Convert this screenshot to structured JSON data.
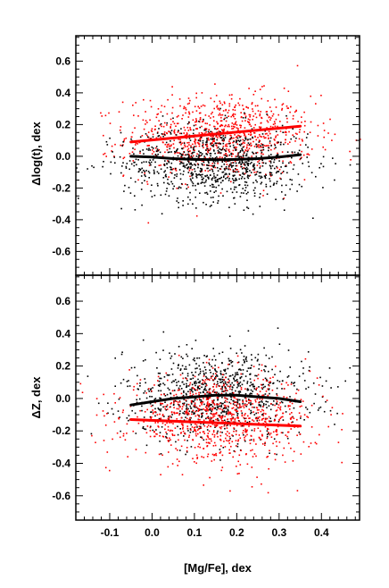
{
  "chart_data": [
    {
      "type": "scatter",
      "title": "",
      "xlabel": "",
      "ylabel": "Δlog(t), dex",
      "xlim": [
        -0.18,
        0.49
      ],
      "ylim": [
        -0.75,
        0.76
      ],
      "x_ticks": [
        "-0.1",
        "0.0",
        "0.1",
        "0.2",
        "0.3",
        "0.4"
      ],
      "y_ticks": [
        "0.6",
        "0.4",
        "0.2",
        "0.0",
        "-0.2",
        "-0.4",
        "-0.6"
      ],
      "series": [
        {
          "color": "#ff0000",
          "cloud": {
            "x_mean": 0.16,
            "x_sd": 0.11,
            "y_mean": 0.13,
            "y_sd": 0.13,
            "n": 900
          },
          "trend": {
            "x": [
              -0.05,
              0.35
            ],
            "y": [
              0.09,
              0.19
            ]
          }
        },
        {
          "color": "#000000",
          "cloud": {
            "x_mean": 0.15,
            "x_sd": 0.11,
            "y_mean": -0.04,
            "y_sd": 0.12,
            "n": 900
          },
          "trend": {
            "x": [
              -0.05,
              0.0,
              0.05,
              0.1,
              0.15,
              0.2,
              0.25,
              0.3,
              0.35
            ],
            "y": [
              0.0,
              -0.005,
              -0.015,
              -0.02,
              -0.022,
              -0.02,
              -0.015,
              -0.005,
              0.01
            ]
          }
        }
      ]
    },
    {
      "type": "scatter",
      "title": "",
      "xlabel": "[Mg/Fe], dex",
      "ylabel": "ΔZ, dex",
      "xlim": [
        -0.18,
        0.49
      ],
      "ylim": [
        -0.75,
        0.76
      ],
      "x_ticks": [
        "-0.1",
        "0.0",
        "0.1",
        "0.2",
        "0.3",
        "0.4"
      ],
      "y_ticks": [
        "0.6",
        "0.4",
        "0.2",
        "0.0",
        "-0.2",
        "-0.4",
        "-0.6"
      ],
      "series": [
        {
          "color": "#000000",
          "cloud": {
            "x_mean": 0.15,
            "x_sd": 0.11,
            "y_mean": 0.03,
            "y_sd": 0.14,
            "n": 900
          },
          "trend": {
            "x": [
              -0.05,
              0.0,
              0.05,
              0.1,
              0.15,
              0.2,
              0.25,
              0.3,
              0.35
            ],
            "y": [
              -0.04,
              -0.02,
              0.0,
              0.01,
              0.02,
              0.02,
              0.01,
              0.0,
              -0.02
            ]
          }
        },
        {
          "color": "#ff0000",
          "cloud": {
            "x_mean": 0.16,
            "x_sd": 0.11,
            "y_mean": -0.12,
            "y_sd": 0.13,
            "n": 900
          },
          "trend": {
            "x": [
              -0.05,
              0.35
            ],
            "y": [
              -0.13,
              -0.17
            ]
          }
        }
      ]
    }
  ]
}
